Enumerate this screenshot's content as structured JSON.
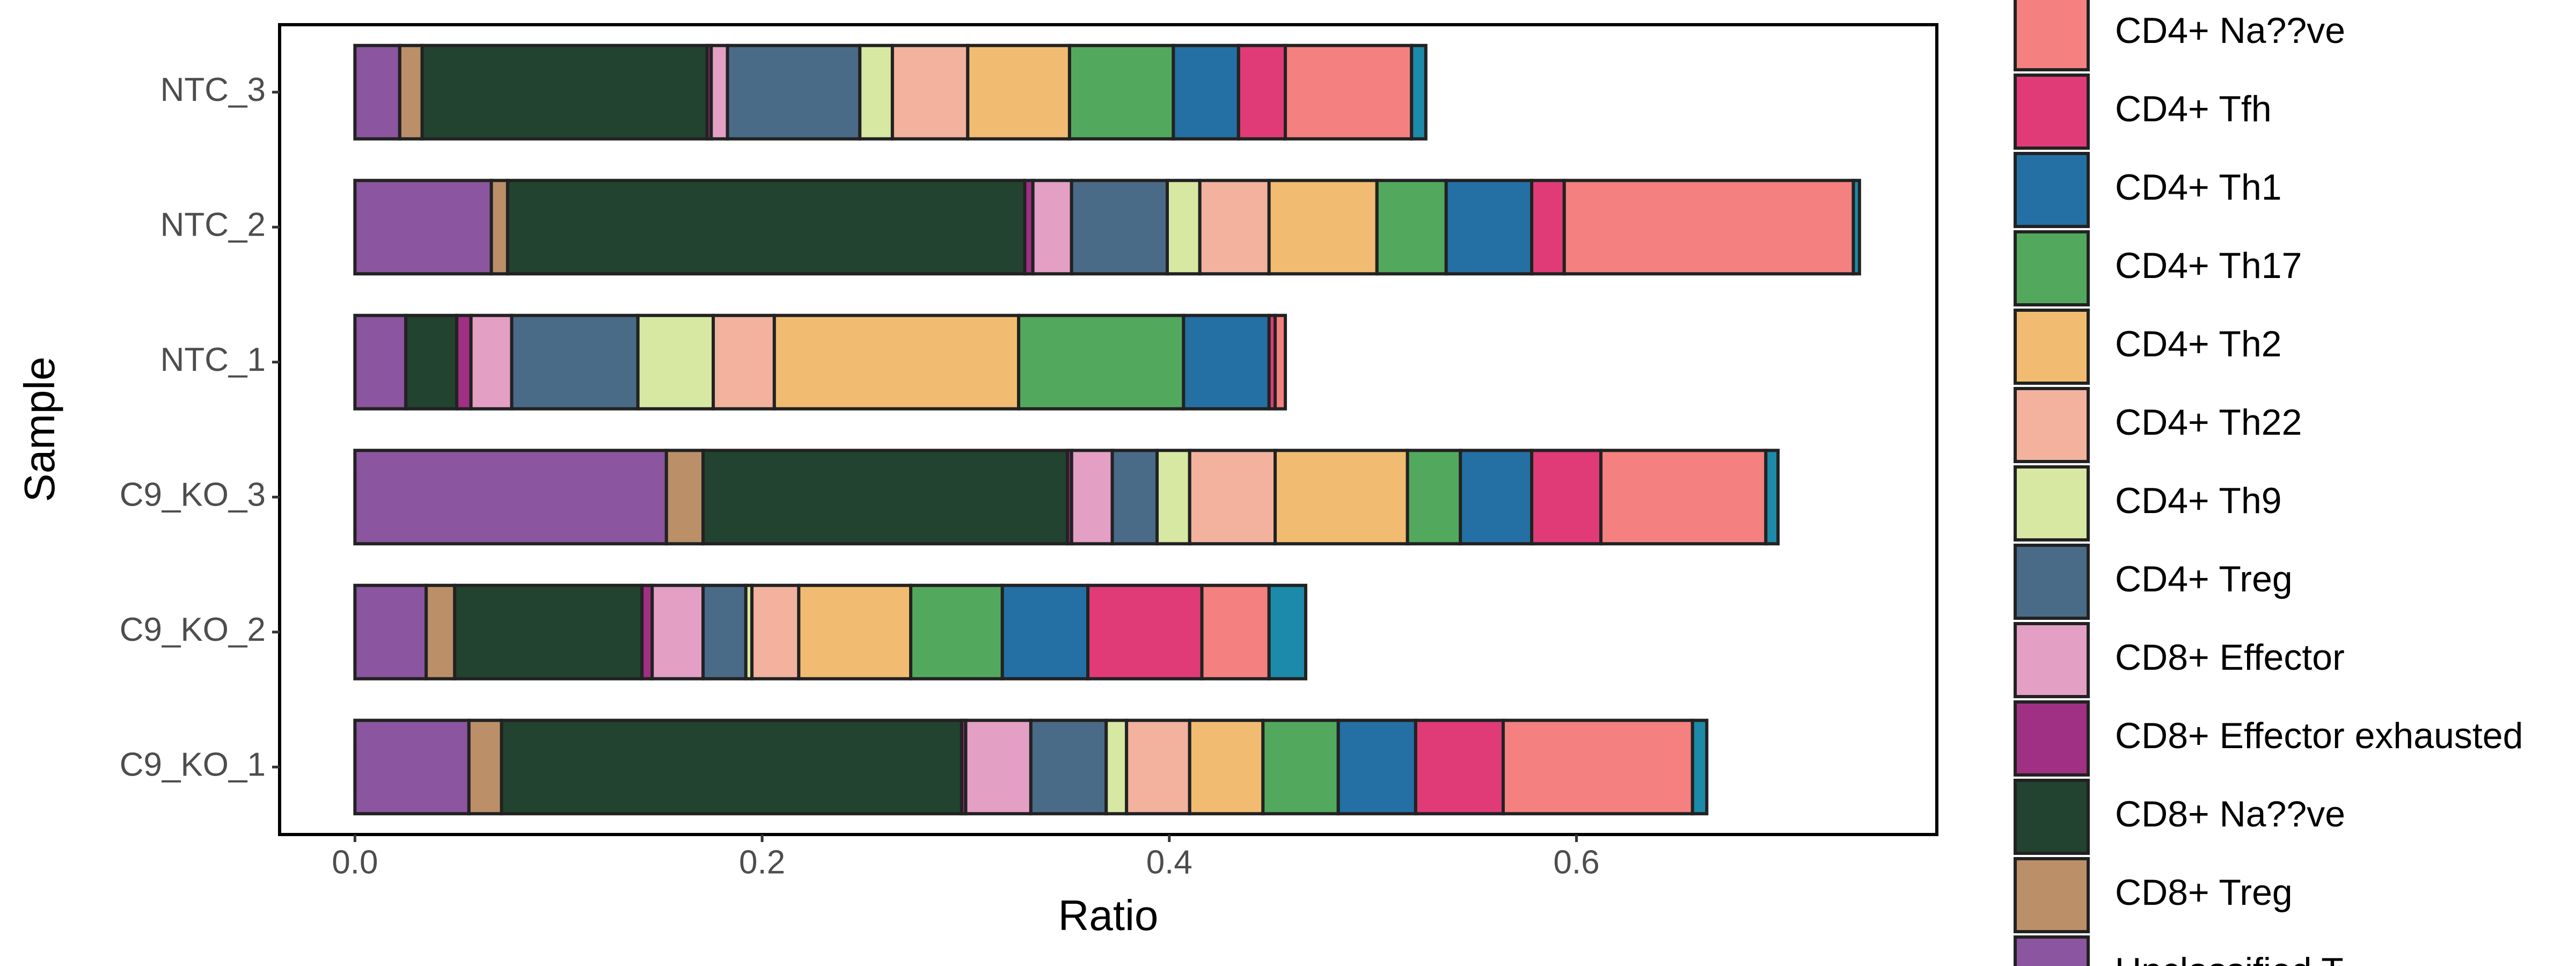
{
  "chart_data": {
    "type": "stacked-barh",
    "xlabel": "Ratio",
    "ylabel": "Sample",
    "categories": [
      "C9_KO_1",
      "C9_KO_2",
      "C9_KO_3",
      "NTC_1",
      "NTC_2",
      "NTC_3"
    ],
    "xlim": [
      -0.037,
      0.777
    ],
    "xticks": [
      {
        "value": 0,
        "label": "0.0"
      },
      0.2,
      0.4,
      0.6
    ],
    "series": [
      {
        "name": "Unclassified T",
        "color": "#8B559F",
        "values": [
          0.056,
          0.035,
          0.153,
          0.025,
          0.067,
          0.022
        ]
      },
      {
        "name": "CD8+ Treg",
        "color": "#BB9068",
        "values": [
          0.016,
          0.014,
          0.018,
          0,
          0.008,
          0.011
        ]
      },
      {
        "name": "CD8+ Na??ve",
        "color": "#22432F",
        "values": [
          0.226,
          0.092,
          0.179,
          0.025,
          0.254,
          0.14
        ]
      },
      {
        "name": "CD8+ Effector exhausted",
        "color": "#A03083",
        "values": [
          0.002,
          0.005,
          0.002,
          0.007,
          0.004,
          0.002
        ]
      },
      {
        "name": "CD8+ Effector",
        "color": "#E49FC5",
        "values": [
          0.032,
          0.025,
          0.02,
          0.02,
          0.019,
          0.008
        ]
      },
      {
        "name": "CD4+ Treg",
        "color": "#4A6B88",
        "values": [
          0.037,
          0.021,
          0.022,
          0.062,
          0.047,
          0.065
        ]
      },
      {
        "name": "CD4+ Th9",
        "color": "#D7E8A2",
        "values": [
          0.01,
          0.003,
          0.016,
          0.037,
          0.016,
          0.016
        ]
      },
      {
        "name": "CD4+ Th22",
        "color": "#F2B29E",
        "values": [
          0.031,
          0.023,
          0.042,
          0.03,
          0.034,
          0.037
        ]
      },
      {
        "name": "CD4+ Th2",
        "color": "#F1BC72",
        "values": [
          0.036,
          0.055,
          0.065,
          0.12,
          0.053,
          0.05
        ]
      },
      {
        "name": "CD4+ Th17",
        "color": "#52A95E",
        "values": [
          0.037,
          0.045,
          0.026,
          0.081,
          0.034,
          0.051
        ]
      },
      {
        "name": "CD4+ Th1",
        "color": "#2470A5",
        "values": [
          0.038,
          0.042,
          0.035,
          0.042,
          0.042,
          0.032
        ]
      },
      {
        "name": "CD4+ Tfh",
        "color": "#E03B76",
        "values": [
          0.043,
          0.056,
          0.034,
          0.003,
          0.016,
          0.023
        ]
      },
      {
        "name": "CD4+ Na??ve",
        "color": "#F4817F",
        "values": [
          0.093,
          0.033,
          0.081,
          0.005,
          0.142,
          0.062
        ]
      },
      {
        "name": null,
        "color": "#1C8BA9",
        "values": [
          0.007,
          0.018,
          0.006,
          0,
          0.003,
          0.007
        ]
      }
    ]
  }
}
